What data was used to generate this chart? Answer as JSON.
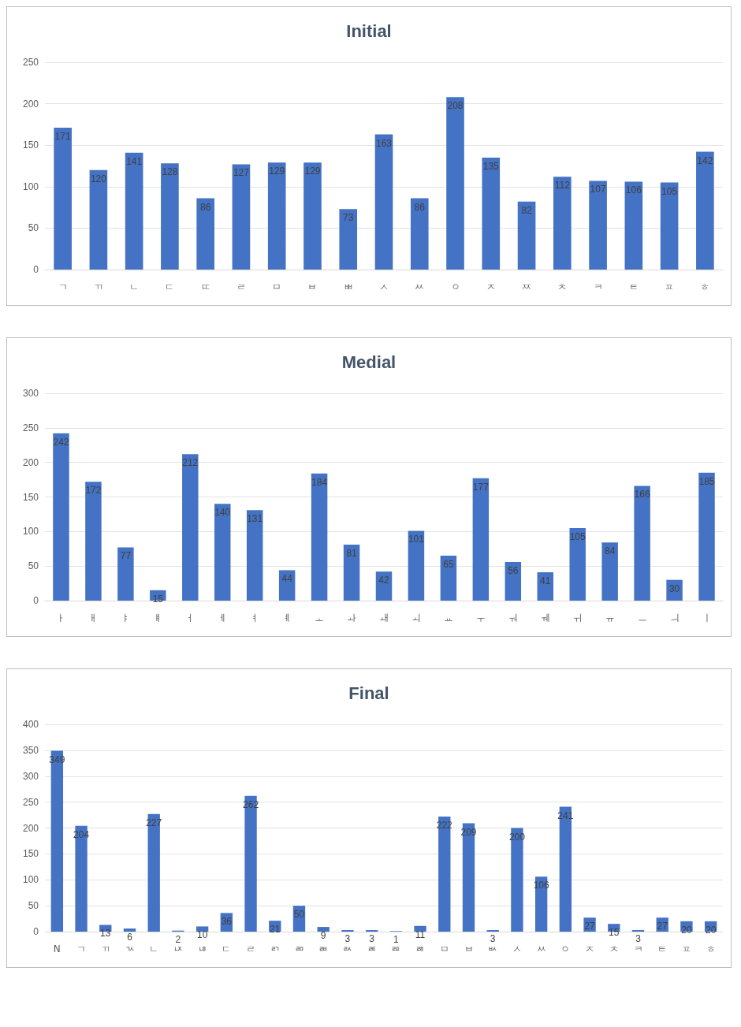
{
  "chart_data": [
    {
      "type": "bar",
      "title": "Initial",
      "categories": [
        "ㄱ",
        "ㄲ",
        "ㄴ",
        "ㄷ",
        "ㄸ",
        "ㄹ",
        "ㅁ",
        "ㅂ",
        "ㅃ",
        "ㅅ",
        "ㅆ",
        "ㅇ",
        "ㅈ",
        "ㅉ",
        "ㅊ",
        "ㅋ",
        "ㅌ",
        "ㅍ",
        "ㅎ"
      ],
      "values": [
        171,
        120,
        141,
        128,
        86,
        127,
        129,
        129,
        73,
        163,
        86,
        208,
        135,
        82,
        112,
        107,
        106,
        105,
        142
      ],
      "color": "#4472c4",
      "ylim": [
        0,
        250
      ],
      "yticks": [
        0,
        50,
        100,
        150,
        200,
        250
      ],
      "grid": "y",
      "data_labels": true
    },
    {
      "type": "bar",
      "title": "Medial",
      "categories": [
        "ㅏ",
        "ㅐ",
        "ㅑ",
        "ㅒ",
        "ㅓ",
        "ㅔ",
        "ㅕ",
        "ㅖ",
        "ㅗ",
        "ㅘ",
        "ㅙ",
        "ㅚ",
        "ㅛ",
        "ㅜ",
        "ㅝ",
        "ㅞ",
        "ㅟ",
        "ㅠ",
        "ㅡ",
        "ㅢ",
        "ㅣ"
      ],
      "values": [
        242,
        172,
        77,
        15,
        212,
        140,
        131,
        44,
        184,
        81,
        42,
        101,
        65,
        177,
        56,
        41,
        105,
        84,
        166,
        30,
        185
      ],
      "color": "#4472c4",
      "ylim": [
        0,
        300
      ],
      "yticks": [
        0,
        50,
        100,
        150,
        200,
        250,
        300
      ],
      "grid": "y",
      "data_labels": true
    },
    {
      "type": "bar",
      "title": "Final",
      "categories": [
        "N",
        "ㄱ",
        "ㄲ",
        "ㄳ",
        "ㄴ",
        "ㄵ",
        "ㄶ",
        "ㄷ",
        "ㄹ",
        "ㄺ",
        "ㄻ",
        "ㄼ",
        "ㄽ",
        "ㄾ",
        "ㄿ",
        "ㅀ",
        "ㅁ",
        "ㅂ",
        "ㅄ",
        "ㅅ",
        "ㅆ",
        "ㅇ",
        "ㅈ",
        "ㅊ",
        "ㅋ",
        "ㅌ",
        "ㅍ",
        "ㅎ"
      ],
      "values": [
        349,
        204,
        13,
        6,
        227,
        2,
        10,
        36,
        262,
        21,
        50,
        9,
        3,
        3,
        1,
        11,
        222,
        209,
        3,
        200,
        106,
        241,
        27,
        15,
        3,
        27,
        20,
        20
      ],
      "color": "#4472c4",
      "ylim": [
        0,
        400
      ],
      "yticks": [
        0,
        50,
        100,
        150,
        200,
        250,
        300,
        350,
        400
      ],
      "grid": "y",
      "data_labels": true
    }
  ]
}
